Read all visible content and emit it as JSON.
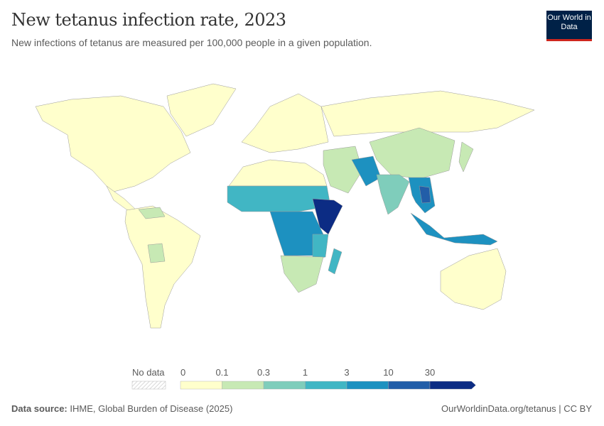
{
  "header": {
    "title": "New tetanus infection rate, 2023",
    "subtitle": "New infections of tetanus are measured per 100,000 people in a given population.",
    "logo": "Our World in Data"
  },
  "legend": {
    "no_data_label": "No data",
    "ticks": [
      "0",
      "0.1",
      "0.3",
      "1",
      "3",
      "10",
      "30"
    ],
    "colors": [
      "#ffffcc",
      "#c7e9b4",
      "#7fcdbb",
      "#41b6c4",
      "#1d91c0",
      "#225ea8",
      "#0c2c84"
    ],
    "no_data_pattern": "hatched-gray"
  },
  "footer": {
    "source_label": "Data source:",
    "source": "IHME, Global Burden of Disease (2025)",
    "link": "OurWorldinData.org/tetanus",
    "license": "CC BY"
  },
  "map_regions": [
    {
      "name": "north-america",
      "bin": 0
    },
    {
      "name": "greenland",
      "bin": 0
    },
    {
      "name": "central-america",
      "bin": 0
    },
    {
      "name": "south-america",
      "bin": 0
    },
    {
      "name": "europe",
      "bin": 0
    },
    {
      "name": "russia",
      "bin": 0
    },
    {
      "name": "china",
      "bin": 1
    },
    {
      "name": "middle-east",
      "bin": 1
    },
    {
      "name": "pakistan-afghanistan",
      "bin": 4
    },
    {
      "name": "india",
      "bin": 2
    },
    {
      "name": "southeast-asia",
      "bin": 4
    },
    {
      "name": "cambodia-laos",
      "bin": 5
    },
    {
      "name": "indonesia",
      "bin": 4
    },
    {
      "name": "australia",
      "bin": 0
    },
    {
      "name": "japan",
      "bin": 1
    },
    {
      "name": "north-africa",
      "bin": 0
    },
    {
      "name": "sahel",
      "bin": 3
    },
    {
      "name": "central-africa",
      "bin": 4
    },
    {
      "name": "horn-of-africa",
      "bin": 6
    },
    {
      "name": "east-africa",
      "bin": 3
    },
    {
      "name": "southern-africa",
      "bin": 1
    },
    {
      "name": "madagascar",
      "bin": 3
    },
    {
      "name": "bolivia",
      "bin": 1
    },
    {
      "name": "venezuela",
      "bin": 1
    }
  ]
}
